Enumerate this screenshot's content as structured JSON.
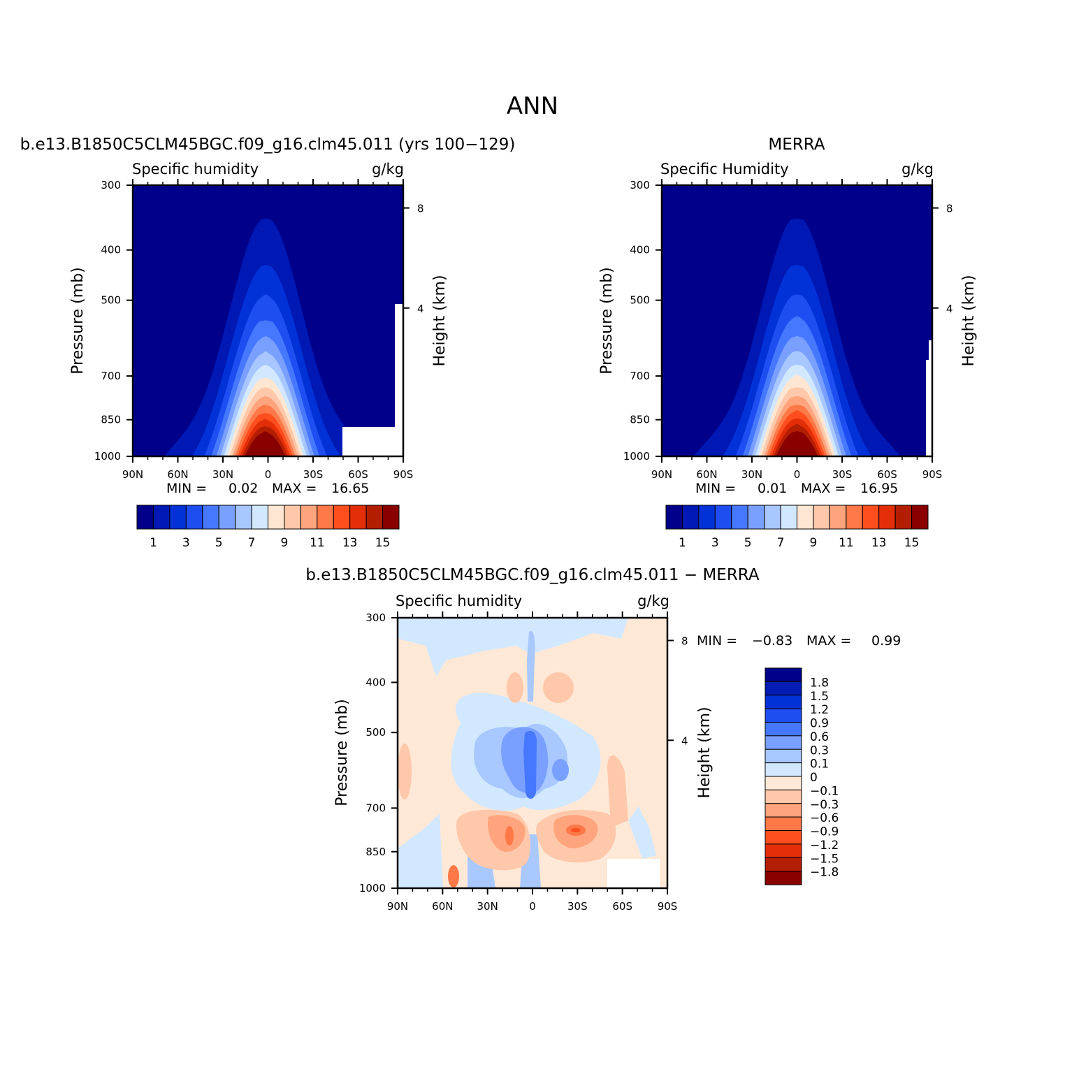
{
  "title": "ANN",
  "colors": {
    "ctrl_scale": [
      "#00008a",
      "#0018b4",
      "#0032d8",
      "#1e4ef2",
      "#4678ff",
      "#7aa0ff",
      "#a8c6ff",
      "#d2e8ff",
      "#ffe6d2",
      "#ffc8aa",
      "#ffa47c",
      "#ff7848",
      "#ff4e1e",
      "#e42e08",
      "#b41e00",
      "#8a0000"
    ],
    "diff_scale": [
      "#00008a",
      "#001cb4",
      "#0032d8",
      "#1e4ef2",
      "#4678ff",
      "#7aa0ff",
      "#a8c8ff",
      "#d2e8ff",
      "#ffe8d6",
      "#ffc8aa",
      "#ffa47c",
      "#ff7848",
      "#ff4e1e",
      "#e42e08",
      "#b41e00",
      "#8a0000"
    ],
    "missing": "#ffffff"
  },
  "chart_data": [
    {
      "type": "heatmap",
      "name": "model",
      "case_title": "b.e13.B1850C5CLM45BGC.f09_g16.clm45.011 (yrs 100−129)",
      "left_title": "Specific humidity",
      "units": "g/kg",
      "ylabel": "Pressure (mb)",
      "ylabel_right": "Height (km)",
      "xticks": [
        "90N",
        "60N",
        "30N",
        "0",
        "30S",
        "60S",
        "90S"
      ],
      "yticks": [
        "300",
        "400",
        "500",
        "700",
        "850",
        "1000"
      ],
      "height_ticks": [
        "8",
        "4"
      ],
      "min_label": "MIN =",
      "min_value": "0.02",
      "max_label": "MAX =",
      "max_value": "16.65",
      "colorbar_labels": [
        "1",
        "3",
        "5",
        "7",
        "9",
        "11",
        "13",
        "15"
      ],
      "peak_value": 16.65,
      "peak_lat": 2,
      "levels": [
        1,
        2,
        3,
        4,
        5,
        6,
        7,
        8,
        9,
        10,
        11,
        12,
        13,
        14,
        15,
        16
      ]
    },
    {
      "type": "heatmap",
      "name": "merra",
      "case_title": "MERRA",
      "left_title": "Specific Humidity",
      "units": "g/kg",
      "ylabel": "Pressure (mb)",
      "ylabel_right": "Height (km)",
      "xticks": [
        "90N",
        "60N",
        "30N",
        "0",
        "30S",
        "60S",
        "90S"
      ],
      "yticks": [
        "300",
        "400",
        "500",
        "700",
        "850",
        "1000"
      ],
      "height_ticks": [
        "8",
        "4"
      ],
      "min_label": "MIN =",
      "min_value": "0.01",
      "max_label": "MAX =",
      "max_value": "16.95",
      "colorbar_labels": [
        "1",
        "3",
        "5",
        "7",
        "9",
        "11",
        "13",
        "15"
      ],
      "peak_value": 16.95,
      "peak_lat": 0,
      "levels": [
        1,
        2,
        3,
        4,
        5,
        6,
        7,
        8,
        9,
        10,
        11,
        12,
        13,
        14,
        15,
        16
      ]
    },
    {
      "type": "heatmap",
      "name": "difference",
      "case_title": "b.e13.B1850C5CLM45BGC.f09_g16.clm45.011 − MERRA",
      "left_title": "Specific humidity",
      "units": "g/kg",
      "ylabel": "Pressure (mb)",
      "ylabel_right": "Height (km)",
      "xticks": [
        "90N",
        "60N",
        "30N",
        "0",
        "30S",
        "60S",
        "90S"
      ],
      "yticks": [
        "300",
        "400",
        "500",
        "700",
        "850",
        "1000"
      ],
      "height_ticks": [
        "8",
        "4"
      ],
      "min_label": "MIN =",
      "min_value": "−0.83",
      "max_label": "MAX =",
      "max_value": "0.99",
      "colorbar_labels": [
        "1.8",
        "1.5",
        "1.2",
        "0.9",
        "0.6",
        "0.3",
        "0.1",
        "0",
        "−0.1",
        "−0.3",
        "−0.6",
        "−0.9",
        "−1.2",
        "−1.5",
        "−1.8"
      ],
      "levels": [
        -1.8,
        -1.5,
        -1.2,
        -0.9,
        -0.6,
        -0.3,
        -0.1,
        0,
        0.1,
        0.3,
        0.6,
        0.9,
        1.2,
        1.5,
        1.8
      ]
    }
  ]
}
